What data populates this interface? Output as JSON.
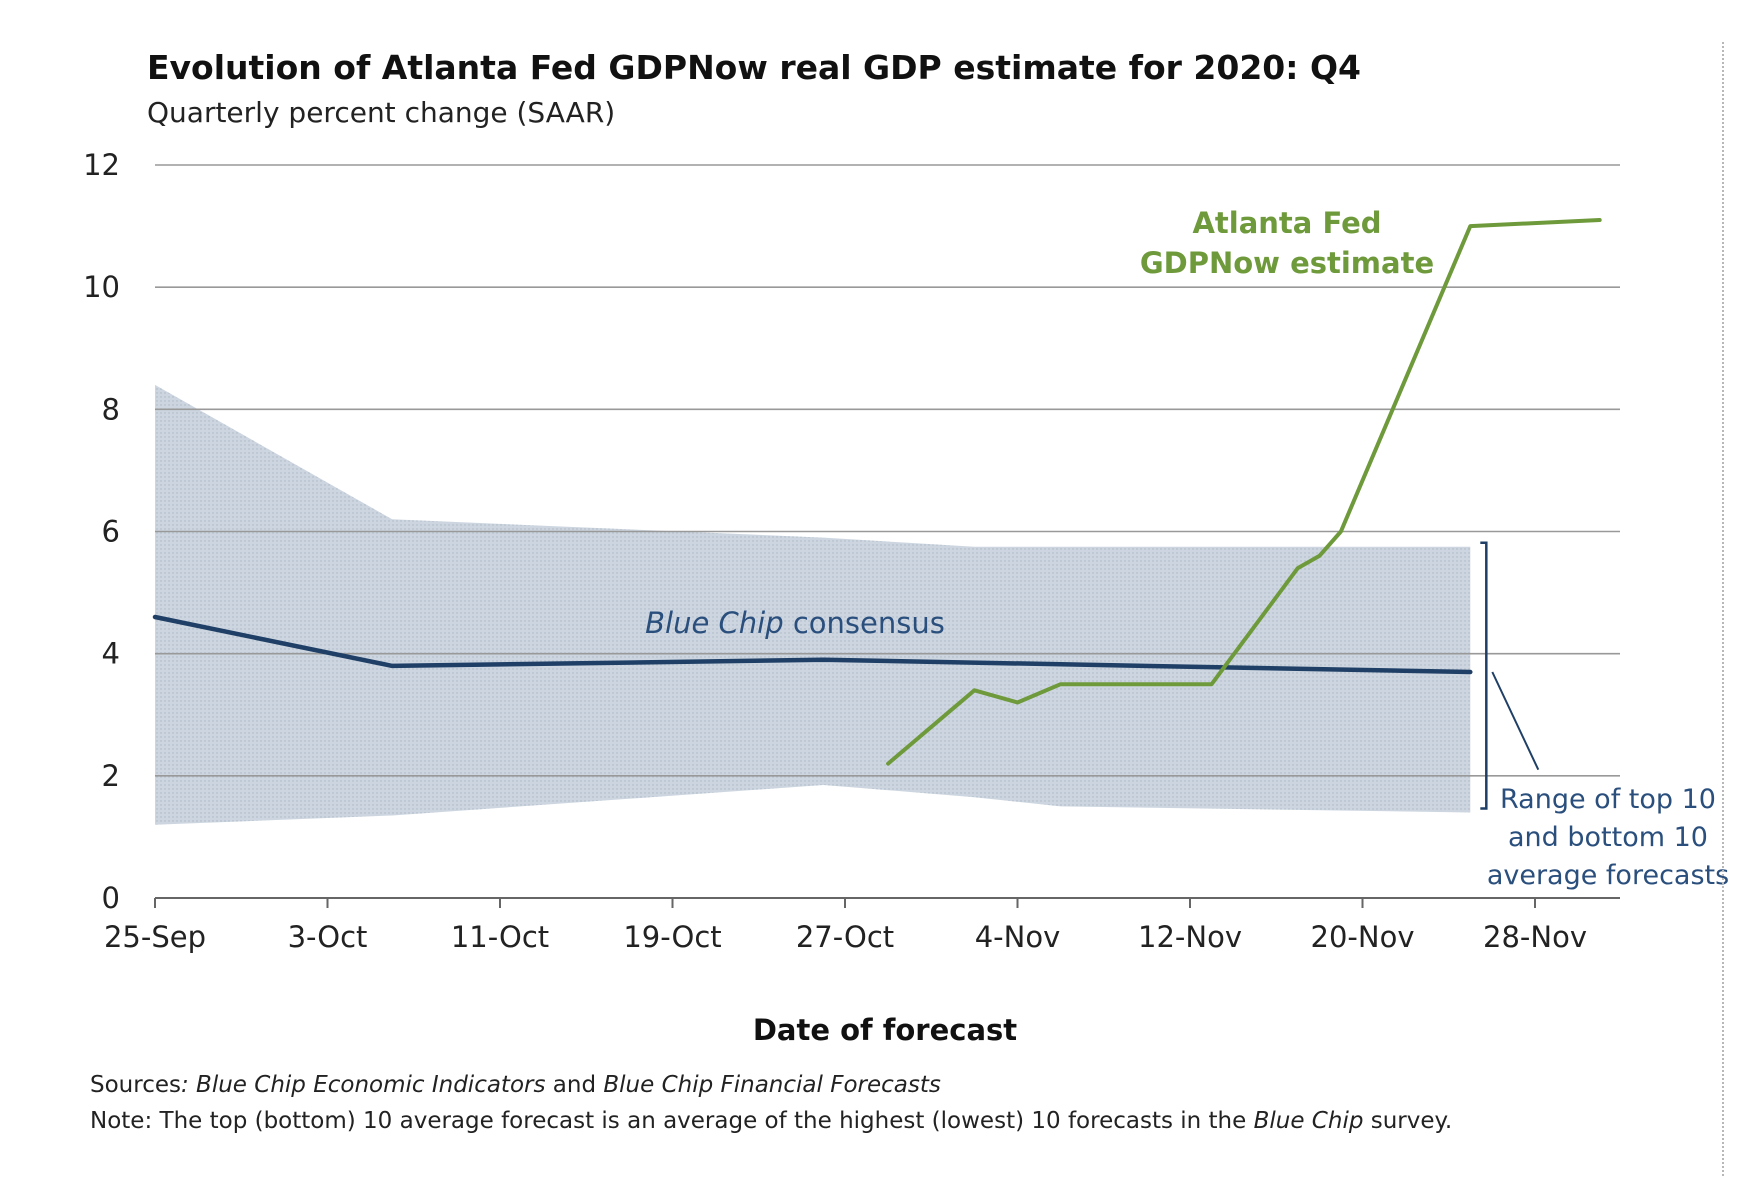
{
  "chart_data": {
    "type": "line",
    "title": "Evolution of Atlanta Fed GDPNow real GDP estimate for 2020: Q4",
    "subtitle": "Quarterly percent change (SAAR)",
    "xlabel": "Date of forecast",
    "ylabel": "",
    "ylim": [
      0,
      12
    ],
    "yticks": [
      "0",
      "2",
      "4",
      "6",
      "8",
      "10",
      "12"
    ],
    "x_tick_labels": [
      "25-Sep",
      "3-Oct",
      "11-Oct",
      "19-Oct",
      "27-Oct",
      "4-Nov",
      "12-Nov",
      "20-Nov",
      "28-Nov"
    ],
    "grid": "horizontal",
    "colors": {
      "gdpnow": "#6e9a3b",
      "consensus": "#1f3f66",
      "range_fill": "#cdd6e0",
      "grid": "#999999"
    },
    "series": [
      {
        "name": "Atlanta Fed GDPNow estimate",
        "label_lines": [
          "Atlanta Fed",
          "GDPNow estimate"
        ],
        "x": [
          "2020-10-29",
          "2020-11-02",
          "2020-11-04",
          "2020-11-06",
          "2020-11-13",
          "2020-11-17",
          "2020-11-18",
          "2020-11-19",
          "2020-11-25",
          "2020-12-01"
        ],
        "values": [
          2.2,
          3.4,
          3.2,
          3.5,
          3.5,
          5.4,
          5.6,
          6.0,
          11.0,
          11.1
        ]
      },
      {
        "name": "Blue Chip consensus",
        "label_italic": "Blue Chip",
        "label_rest": " consensus",
        "x": [
          "2020-09-25",
          "2020-10-06",
          "2020-10-26",
          "2020-11-25"
        ],
        "values": [
          4.6,
          3.8,
          3.9,
          3.7
        ]
      },
      {
        "name": "Range of top 10 and bottom 10 average forecasts",
        "label_lines": [
          "Range of top 10",
          "and bottom 10",
          "average forecasts"
        ],
        "type": "band",
        "x": [
          "2020-09-25",
          "2020-10-06",
          "2020-10-26",
          "2020-11-02",
          "2020-11-06",
          "2020-11-25"
        ],
        "upper": [
          8.4,
          6.2,
          5.9,
          5.75,
          5.75,
          5.75
        ],
        "lower": [
          1.2,
          1.35,
          1.85,
          1.65,
          1.5,
          1.4
        ]
      }
    ]
  },
  "footer": {
    "sources_lead": "Sources",
    "sources_text_1": ": ",
    "sources_italic_1": "Blue Chip Economic Indicators",
    "sources_text_2": " and ",
    "sources_italic_2": "Blue Chip Financial Forecasts",
    "note_lead": "Note",
    "note_text_1": ": The top (bottom) 10 average forecast is an average of the highest (lowest) 10 forecasts in the ",
    "note_italic": "Blue Chip",
    "note_text_2": " survey."
  }
}
